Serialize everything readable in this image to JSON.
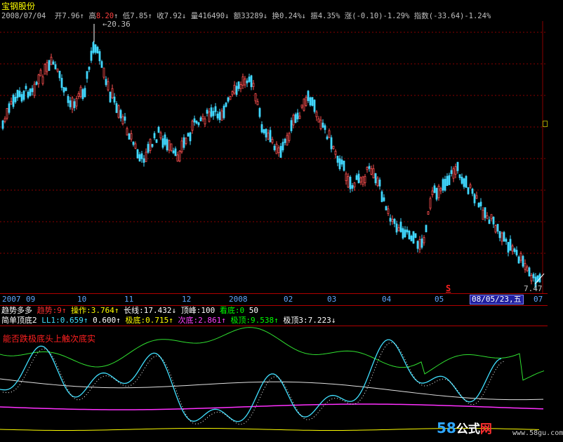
{
  "stock": {
    "name": "宝钢股份"
  },
  "quote": {
    "date": "2008/07/04",
    "open_label": "开",
    "open": "7.96",
    "high_label": "高",
    "high": "8.20",
    "low_label": "低",
    "low": "7.85",
    "close_label": "收",
    "close": "7.92",
    "volume_label": "量",
    "volume": "416490",
    "amount_label": "额",
    "amount": "33289",
    "turnover_label": "换",
    "turnover": "0.24%",
    "amplitude_label": "振",
    "amplitude": "4.35%",
    "change_label": "涨",
    "change": "(-0.10)-1.29%",
    "index_label": "指数",
    "index": "(-33.64)-1.24%"
  },
  "chart": {
    "high_marker": "20.36",
    "low_marker": "7.47",
    "signal_mark": "S",
    "x_ticks": [
      "2007",
      "09",
      "10",
      "11",
      "12",
      "2008",
      "02",
      "03",
      "04",
      "05",
      "07"
    ],
    "cursor_date": "08/05/23,五",
    "colors": {
      "up": "#ff5050",
      "down": "#40d8ff",
      "grid": "#a00000"
    }
  },
  "indicator1": {
    "name": "趋势多多",
    "items": [
      {
        "label": "趋势:",
        "value": "9↑",
        "color": "#ff3030"
      },
      {
        "label": "操作:",
        "value": "3.764↑",
        "color": "#ffff00"
      },
      {
        "label": "长线:",
        "value": "17.432↓",
        "color": "#ffffff"
      },
      {
        "label": "顶峰:",
        "value": "100",
        "color": "#ffffff"
      },
      {
        "label": "看底:",
        "value": "0",
        "color": "#00ff00"
      },
      {
        "label": "",
        "value": "50",
        "color": "#ffffff"
      }
    ]
  },
  "indicator2": {
    "name": "简单顶底2",
    "items": [
      {
        "label": "LL1:",
        "value": "0.659↑",
        "color": "#40e0ff"
      },
      {
        "label": "",
        "value": "0.600↑",
        "color": "#ffffff"
      },
      {
        "label": "极底:",
        "value": "0.715↑",
        "color": "#ffff00"
      },
      {
        "label": "次底:",
        "value": "2.861↑",
        "color": "#ff40ff"
      },
      {
        "label": "极顶:",
        "value": "9.538↑",
        "color": "#00ff00"
      },
      {
        "label": "极顶3:",
        "value": "7.223↓",
        "color": "#ffffff"
      }
    ]
  },
  "sub_chart": {
    "title": "能否跌极底头上触次底实"
  },
  "watermark": {
    "num": "58",
    "gs": "公式",
    "wang": "网",
    "url": "www.58gu.com"
  }
}
